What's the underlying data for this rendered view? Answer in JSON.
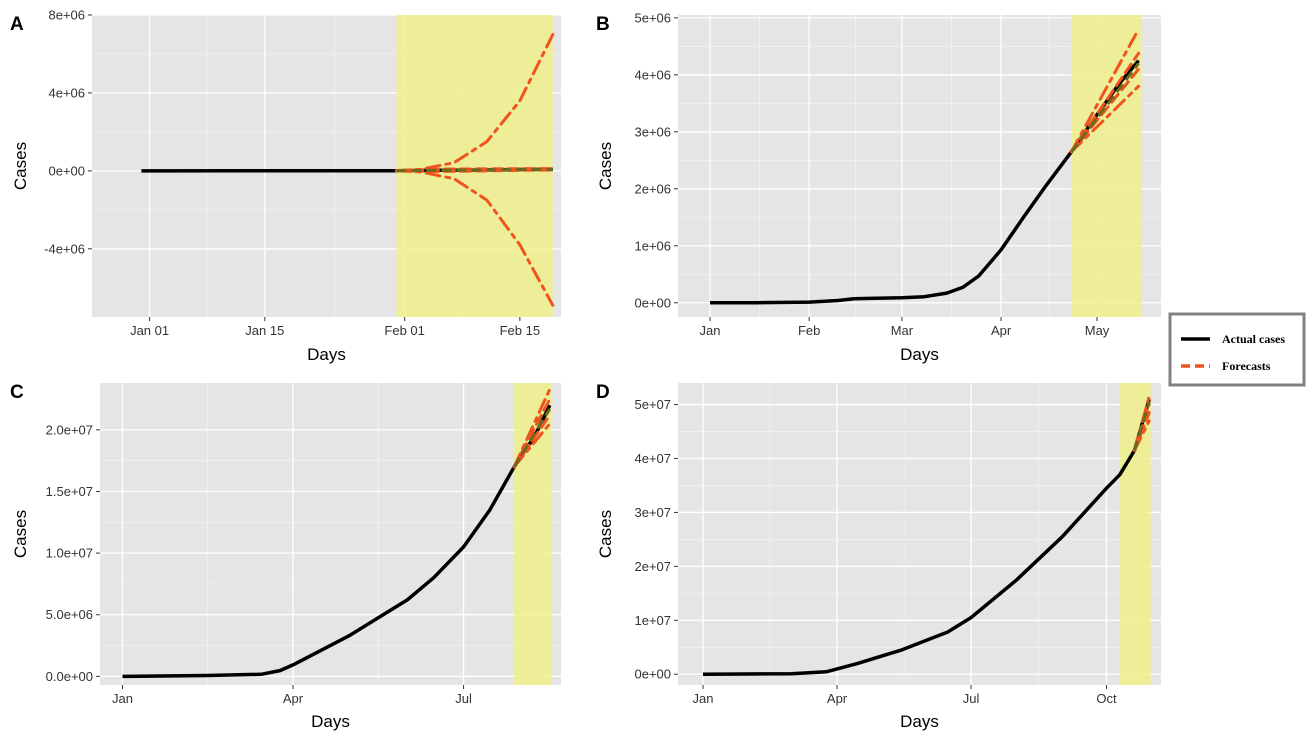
{
  "colors": {
    "actual": "#000000",
    "forecast": "#f0541e",
    "forecast_overlap": "#6b6b1e",
    "highlight": "#f0f08c",
    "panel_bg": "#e5e5e5",
    "legend_border": "#808080"
  },
  "legend": {
    "position": "right",
    "items": [
      {
        "label": "Actual cases",
        "style": "solid",
        "color": "#000000"
      },
      {
        "label": "Forecasts",
        "style": "dashed",
        "color": "#f0541e"
      }
    ]
  },
  "chart_data": [
    {
      "panel": "A",
      "type": "line",
      "xlabel": "Days",
      "ylabel": "Cases",
      "x_type": "date",
      "xlim": [
        "2019-12-25",
        "2020-02-20"
      ],
      "ylim": [
        -7500000,
        8000000
      ],
      "x_ticks": [
        {
          "x": "2020-01-01",
          "label": "Jan 01"
        },
        {
          "x": "2020-01-15",
          "label": "Jan 15"
        },
        {
          "x": "2020-02-01",
          "label": "Feb 01"
        },
        {
          "x": "2020-02-15",
          "label": "Feb 15"
        }
      ],
      "y_ticks": [
        {
          "y": -4000000,
          "label": "-4e+06"
        },
        {
          "y": 0,
          "label": "0e+00"
        },
        {
          "y": 4000000,
          "label": "4e+06"
        },
        {
          "y": 8000000,
          "label": "8e+06"
        }
      ],
      "highlight": [
        "2020-01-31",
        "2020-02-19"
      ],
      "actual": [
        [
          "2019-12-31",
          0
        ],
        [
          "2020-01-31",
          9800
        ],
        [
          "2020-02-05",
          28000
        ],
        [
          "2020-02-10",
          43000
        ],
        [
          "2020-02-15",
          69000
        ],
        [
          "2020-02-19",
          75000
        ]
      ],
      "forecast_point": [
        [
          "2020-01-31",
          9800
        ],
        [
          "2020-02-05",
          30000
        ],
        [
          "2020-02-10",
          47000
        ],
        [
          "2020-02-15",
          63000
        ],
        [
          "2020-02-19",
          78000
        ]
      ],
      "forecast_lower_95": [
        [
          "2020-01-31",
          9800
        ],
        [
          "2020-02-03",
          -60000
        ],
        [
          "2020-02-07",
          -400000
        ],
        [
          "2020-02-11",
          -1500000
        ],
        [
          "2020-02-15",
          -3800000
        ],
        [
          "2020-02-19",
          -6900000
        ]
      ],
      "forecast_upper_95": [
        [
          "2020-01-31",
          9800
        ],
        [
          "2020-02-03",
          80000
        ],
        [
          "2020-02-07",
          420000
        ],
        [
          "2020-02-11",
          1500000
        ],
        [
          "2020-02-15",
          3600000
        ],
        [
          "2020-02-19",
          7000000
        ]
      ],
      "forecast_lower_80": [
        [
          "2020-01-31",
          9800
        ],
        [
          "2020-02-05",
          -30000
        ],
        [
          "2020-02-10",
          -5000
        ],
        [
          "2020-02-15",
          30000
        ],
        [
          "2020-02-19",
          45000
        ]
      ],
      "forecast_upper_80": [
        [
          "2020-01-31",
          9800
        ],
        [
          "2020-02-05",
          90000
        ],
        [
          "2020-02-10",
          100000
        ],
        [
          "2020-02-15",
          110000
        ],
        [
          "2020-02-19",
          115000
        ]
      ]
    },
    {
      "panel": "B",
      "type": "line",
      "xlabel": "Days",
      "ylabel": "Cases",
      "x_type": "date",
      "xlim": [
        "2019-12-22",
        "2020-05-21"
      ],
      "ylim": [
        -250000,
        5050000
      ],
      "x_ticks": [
        {
          "x": "2020-01-01",
          "label": "Jan"
        },
        {
          "x": "2020-02-01",
          "label": "Feb"
        },
        {
          "x": "2020-03-01",
          "label": "Mar"
        },
        {
          "x": "2020-04-01",
          "label": "Apr"
        },
        {
          "x": "2020-05-01",
          "label": "May"
        }
      ],
      "y_ticks": [
        {
          "y": 0,
          "label": "0e+00"
        },
        {
          "y": 1000000,
          "label": "1e+06"
        },
        {
          "y": 2000000,
          "label": "2e+06"
        },
        {
          "y": 3000000,
          "label": "3e+06"
        },
        {
          "y": 4000000,
          "label": "4e+06"
        },
        {
          "y": 5000000,
          "label": "5e+06"
        }
      ],
      "highlight": [
        "2020-04-23",
        "2020-05-15"
      ],
      "actual": [
        [
          "2020-01-01",
          0
        ],
        [
          "2020-01-15",
          300
        ],
        [
          "2020-02-01",
          12000
        ],
        [
          "2020-02-10",
          40000
        ],
        [
          "2020-02-15",
          70000
        ],
        [
          "2020-02-20",
          76000
        ],
        [
          "2020-03-01",
          88000
        ],
        [
          "2020-03-08",
          107000
        ],
        [
          "2020-03-15",
          170000
        ],
        [
          "2020-03-20",
          270000
        ],
        [
          "2020-03-25",
          470000
        ],
        [
          "2020-04-01",
          930000
        ],
        [
          "2020-04-08",
          1500000
        ],
        [
          "2020-04-15",
          2050000
        ],
        [
          "2020-04-23",
          2650000
        ],
        [
          "2020-05-01",
          3300000
        ],
        [
          "2020-05-08",
          3850000
        ],
        [
          "2020-05-14",
          4250000
        ]
      ],
      "forecast_point": [
        [
          "2020-04-23",
          2650000
        ],
        [
          "2020-05-14",
          4200000
        ]
      ],
      "forecast_lower_95": [
        [
          "2020-04-23",
          2650000
        ],
        [
          "2020-05-14",
          3800000
        ]
      ],
      "forecast_upper_95": [
        [
          "2020-04-23",
          2650000
        ],
        [
          "2020-05-14",
          4800000
        ]
      ],
      "forecast_lower_80": [
        [
          "2020-04-23",
          2650000
        ],
        [
          "2020-05-14",
          4100000
        ]
      ],
      "forecast_upper_80": [
        [
          "2020-04-23",
          2650000
        ],
        [
          "2020-05-14",
          4380000
        ]
      ]
    },
    {
      "panel": "C",
      "type": "line",
      "xlabel": "Days",
      "ylabel": "Cases",
      "x_type": "date",
      "xlim": [
        "2019-12-20",
        "2020-08-22"
      ],
      "ylim": [
        -700000,
        23800000
      ],
      "x_ticks": [
        {
          "x": "2020-01-01",
          "label": "Jan"
        },
        {
          "x": "2020-04-01",
          "label": "Apr"
        },
        {
          "x": "2020-07-01",
          "label": "Jul"
        }
      ],
      "y_ticks": [
        {
          "y": 0,
          "label": "0.0e+00"
        },
        {
          "y": 5000000,
          "label": "5.0e+06"
        },
        {
          "y": 10000000,
          "label": "1.0e+07"
        },
        {
          "y": 15000000,
          "label": "1.5e+07"
        },
        {
          "y": 20000000,
          "label": "2.0e+07"
        }
      ],
      "highlight": [
        "2020-07-28",
        "2020-08-17"
      ],
      "actual": [
        [
          "2020-01-01",
          0
        ],
        [
          "2020-02-15",
          70000
        ],
        [
          "2020-03-15",
          170000
        ],
        [
          "2020-03-25",
          470000
        ],
        [
          "2020-04-01",
          930000
        ],
        [
          "2020-05-01",
          3300000
        ],
        [
          "2020-06-01",
          6200000
        ],
        [
          "2020-06-15",
          8000000
        ],
        [
          "2020-07-01",
          10500000
        ],
        [
          "2020-07-15",
          13500000
        ],
        [
          "2020-07-28",
          17000000
        ],
        [
          "2020-08-08",
          19500000
        ],
        [
          "2020-08-16",
          22000000
        ]
      ],
      "forecast_point": [
        [
          "2020-07-28",
          17000000
        ],
        [
          "2020-08-16",
          21700000
        ]
      ],
      "forecast_lower_95": [
        [
          "2020-07-28",
          17000000
        ],
        [
          "2020-08-16",
          20500000
        ]
      ],
      "forecast_upper_95": [
        [
          "2020-07-28",
          17000000
        ],
        [
          "2020-08-16",
          23300000
        ]
      ],
      "forecast_lower_80": [
        [
          "2020-07-28",
          17000000
        ],
        [
          "2020-08-16",
          21200000
        ]
      ],
      "forecast_upper_80": [
        [
          "2020-07-28",
          17000000
        ],
        [
          "2020-08-16",
          22500000
        ]
      ]
    },
    {
      "panel": "D",
      "type": "line",
      "xlabel": "Days",
      "ylabel": "Cases",
      "x_type": "date",
      "xlim": [
        "2019-12-15",
        "2020-11-07"
      ],
      "ylim": [
        -2000000,
        54000000
      ],
      "x_ticks": [
        {
          "x": "2020-01-01",
          "label": "Jan"
        },
        {
          "x": "2020-04-01",
          "label": "Apr"
        },
        {
          "x": "2020-07-01",
          "label": "Jul"
        },
        {
          "x": "2020-10-01",
          "label": "Oct"
        }
      ],
      "y_ticks": [
        {
          "y": 0,
          "label": "0e+00"
        },
        {
          "y": 10000000,
          "label": "1e+07"
        },
        {
          "y": 20000000,
          "label": "2e+07"
        },
        {
          "y": 30000000,
          "label": "3e+07"
        },
        {
          "y": 40000000,
          "label": "4e+07"
        },
        {
          "y": 50000000,
          "label": "5e+07"
        }
      ],
      "highlight": [
        "2020-10-10",
        "2020-10-31"
      ],
      "actual": [
        [
          "2020-01-01",
          0
        ],
        [
          "2020-03-01",
          100000
        ],
        [
          "2020-03-25",
          470000
        ],
        [
          "2020-04-15",
          2000000
        ],
        [
          "2020-05-15",
          4500000
        ],
        [
          "2020-06-15",
          7800000
        ],
        [
          "2020-07-01",
          10500000
        ],
        [
          "2020-08-01",
          17500000
        ],
        [
          "2020-09-01",
          25500000
        ],
        [
          "2020-10-01",
          34500000
        ],
        [
          "2020-10-10",
          37000000
        ],
        [
          "2020-10-20",
          41500000
        ],
        [
          "2020-10-30",
          51000000
        ]
      ],
      "forecast_point": [
        [
          "2020-10-20",
          41500000
        ],
        [
          "2020-10-30",
          50500000
        ]
      ],
      "forecast_lower_95": [
        [
          "2020-10-20",
          41500000
        ],
        [
          "2020-10-30",
          47000000
        ]
      ],
      "forecast_upper_95": [
        [
          "2020-10-20",
          41500000
        ],
        [
          "2020-10-30",
          51500000
        ]
      ],
      "forecast_lower_80": [
        [
          "2020-10-20",
          41500000
        ],
        [
          "2020-10-30",
          48500000
        ]
      ],
      "forecast_upper_80": [
        [
          "2020-10-20",
          41500000
        ],
        [
          "2020-10-30",
          50000000
        ]
      ]
    }
  ]
}
